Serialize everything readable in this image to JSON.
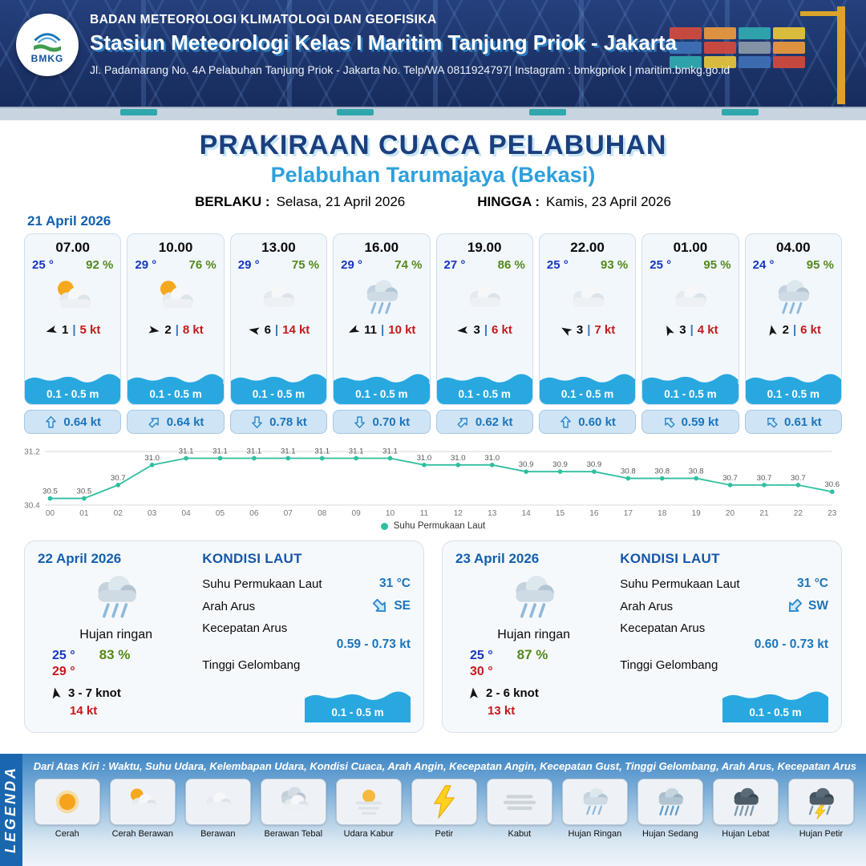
{
  "header": {
    "logo_text": "BMKG",
    "org": "BADAN METEOROLOGI KLIMATOLOGI DAN GEOFISIKA",
    "station": "Stasiun Meteorologi Kelas I Maritim Tanjung Priok - Jakarta",
    "address": "Jl. Padamarang No. 4A Pelabuhan Tanjung Priok - Jakarta No. Telp/WA 0811924797| Instagram : bmkgpriok | maritim.bmkg.go.id"
  },
  "title": {
    "main": "PRAKIRAAN CUACA PELABUHAN",
    "subtitle": "Pelabuhan Tarumajaya (Bekasi)",
    "valid_from_label": "BERLAKU :",
    "valid_from": "Selasa, 21 April 2026",
    "valid_to_label": "HINGGA :",
    "valid_to": "Kamis, 23 April 2026"
  },
  "forecast_date": "21 April 2026",
  "cards": [
    {
      "time": "07.00",
      "temp": "25 °",
      "humidity": "92 %",
      "icon": "cerah-berawan",
      "wind_dir_deg": 255,
      "wind": "1",
      "gust": "5 kt",
      "wave": "0.1 - 0.5 m",
      "current_dir_deg": 0,
      "current": "0.64 kt"
    },
    {
      "time": "10.00",
      "temp": "29 °",
      "humidity": "76 %",
      "icon": "cerah-berawan",
      "wind_dir_deg": 100,
      "wind": "2",
      "gust": "8 kt",
      "wave": "0.1 - 0.5 m",
      "current_dir_deg": 45,
      "current": "0.64 kt"
    },
    {
      "time": "13.00",
      "temp": "29 °",
      "humidity": "75 %",
      "icon": "berawan",
      "wind_dir_deg": 280,
      "wind": "6",
      "gust": "14 kt",
      "wave": "0.1 - 0.5 m",
      "current_dir_deg": 180,
      "current": "0.78 kt"
    },
    {
      "time": "16.00",
      "temp": "29 °",
      "humidity": "74 %",
      "icon": "hujan-ringan",
      "wind_dir_deg": 245,
      "wind": "11",
      "gust": "10 kt",
      "wave": "0.1 - 0.5 m",
      "current_dir_deg": 180,
      "current": "0.70 kt"
    },
    {
      "time": "19.00",
      "temp": "27 °",
      "humidity": "86 %",
      "icon": "berawan",
      "wind_dir_deg": 265,
      "wind": "3",
      "gust": "6 kt",
      "wave": "0.1 - 0.5 m",
      "current_dir_deg": 45,
      "current": "0.62 kt"
    },
    {
      "time": "22.00",
      "temp": "25 °",
      "humidity": "93 %",
      "icon": "berawan",
      "wind_dir_deg": 300,
      "wind": "3",
      "gust": "7 kt",
      "wave": "0.1 - 0.5 m",
      "current_dir_deg": 0,
      "current": "0.60 kt"
    },
    {
      "time": "01.00",
      "temp": "25 °",
      "humidity": "95 %",
      "icon": "berawan",
      "wind_dir_deg": 335,
      "wind": "3",
      "gust": "4 kt",
      "wave": "0.1 - 0.5 m",
      "current_dir_deg": 315,
      "current": "0.59 kt"
    },
    {
      "time": "04.00",
      "temp": "24 °",
      "humidity": "95 %",
      "icon": "hujan-ringan",
      "wind_dir_deg": 350,
      "wind": "2",
      "gust": "6 kt",
      "wave": "0.1 - 0.5 m",
      "current_dir_deg": 315,
      "current": "0.61 kt"
    }
  ],
  "chart_data": {
    "type": "line",
    "title": "",
    "xlabel": "",
    "ylabel": "",
    "legend": "Suhu Permukaan Laut",
    "legend_position": "bottom",
    "color": "#2fbfa0",
    "x": [
      "00",
      "01",
      "02",
      "03",
      "04",
      "05",
      "06",
      "07",
      "08",
      "09",
      "10",
      "11",
      "12",
      "13",
      "14",
      "15",
      "16",
      "17",
      "18",
      "19",
      "20",
      "21",
      "22",
      "23"
    ],
    "values": [
      30.5,
      30.5,
      30.7,
      31.0,
      31.1,
      31.1,
      31.1,
      31.1,
      31.1,
      31.1,
      31.1,
      31.0,
      31.0,
      31.0,
      30.9,
      30.9,
      30.9,
      30.8,
      30.8,
      30.8,
      30.7,
      30.7,
      30.7,
      30.6
    ],
    "ylim": [
      30.4,
      31.2
    ],
    "yticks": [
      30.4,
      31.2
    ]
  },
  "sea_labels": {
    "title": "KONDISI LAUT",
    "sst": "Suhu Permukaan Laut",
    "arah": "Arah Arus",
    "kecepatan": "Kecepatan Arus",
    "tinggi": "Tinggi Gelombang"
  },
  "daily": [
    {
      "date": "22 April 2026",
      "icon": "hujan-ringan",
      "condition": "Hujan ringan",
      "temp_min": "25 °",
      "temp_max": "29 °",
      "humidity": "83 %",
      "wind_dir_deg": 350,
      "wind_range": "3 - 7 knot",
      "gust": "14 kt",
      "sst": "31 °C",
      "current_dir": "SE",
      "current_dir_deg": 135,
      "current_speed": "0.59 - 0.73 kt",
      "wave": "0.1 - 0.5 m"
    },
    {
      "date": "23 April 2026",
      "icon": "hujan-ringan",
      "condition": "Hujan ringan",
      "temp_min": "25 °",
      "temp_max": "30 °",
      "humidity": "87 %",
      "wind_dir_deg": 355,
      "wind_range": "2 - 6 knot",
      "gust": "13 kt",
      "sst": "31 °C",
      "current_dir": "SW",
      "current_dir_deg": 225,
      "current_speed": "0.60 - 0.73 kt",
      "wave": "0.1 - 0.5 m"
    }
  ],
  "legend": {
    "title": "LEGENDA",
    "caption": "Dari Atas Kiri : Waktu, Suhu Udara, Kelembapan Udara, Kondisi Cuaca, Arah Angin, Kecepatan Angin, Kecepatan Gust, Tinggi Gelombang, Arah Arus, Kecepatan Arus",
    "items": [
      {
        "label": "Cerah",
        "icon": "cerah"
      },
      {
        "label": "Cerah Berawan",
        "icon": "cerah-berawan"
      },
      {
        "label": "Berawan",
        "icon": "berawan"
      },
      {
        "label": "Berawan Tebal",
        "icon": "berawan-tebal"
      },
      {
        "label": "Udara Kabur",
        "icon": "udara-kabur"
      },
      {
        "label": "Petir",
        "icon": "petir"
      },
      {
        "label": "Kabut",
        "icon": "kabut"
      },
      {
        "label": "Hujan Ringan",
        "icon": "hujan-ringan"
      },
      {
        "label": "Hujan Sedang",
        "icon": "hujan-sedang"
      },
      {
        "label": "Hujan Lebat",
        "icon": "hujan-lebat"
      },
      {
        "label": "Hujan Petir",
        "icon": "hujan-petir"
      }
    ]
  }
}
